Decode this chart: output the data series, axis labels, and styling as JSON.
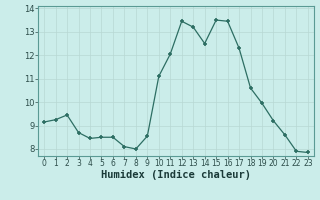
{
  "x": [
    0,
    1,
    2,
    3,
    4,
    5,
    6,
    7,
    8,
    9,
    10,
    11,
    12,
    13,
    14,
    15,
    16,
    17,
    18,
    19,
    20,
    21,
    22,
    23
  ],
  "y": [
    9.15,
    9.25,
    9.45,
    8.7,
    8.45,
    8.5,
    8.5,
    8.1,
    8.0,
    8.55,
    11.1,
    12.05,
    13.45,
    13.2,
    12.5,
    13.5,
    13.45,
    12.3,
    10.6,
    9.95,
    9.2,
    8.6,
    7.9,
    7.85
  ],
  "xlabel": "Humidex (Indice chaleur)",
  "xlim": [
    -0.5,
    23.5
  ],
  "ylim": [
    7.7,
    14.1
  ],
  "yticks": [
    8,
    9,
    10,
    11,
    12,
    13,
    14
  ],
  "xticks": [
    0,
    1,
    2,
    3,
    4,
    5,
    6,
    7,
    8,
    9,
    10,
    11,
    12,
    13,
    14,
    15,
    16,
    17,
    18,
    19,
    20,
    21,
    22,
    23
  ],
  "xtick_labels": [
    "0",
    "1",
    "2",
    "3",
    "4",
    "5",
    "6",
    "7",
    "8",
    "9",
    "10",
    "11",
    "12",
    "13",
    "14",
    "15",
    "16",
    "17",
    "18",
    "19",
    "20",
    "21",
    "22",
    "23"
  ],
  "line_color": "#2d6e63",
  "marker_color": "#2d6e63",
  "bg_color": "#cbedea",
  "grid_color": "#b8d8d4",
  "tick_label_fontsize": 5.5,
  "xlabel_fontsize": 7.5
}
